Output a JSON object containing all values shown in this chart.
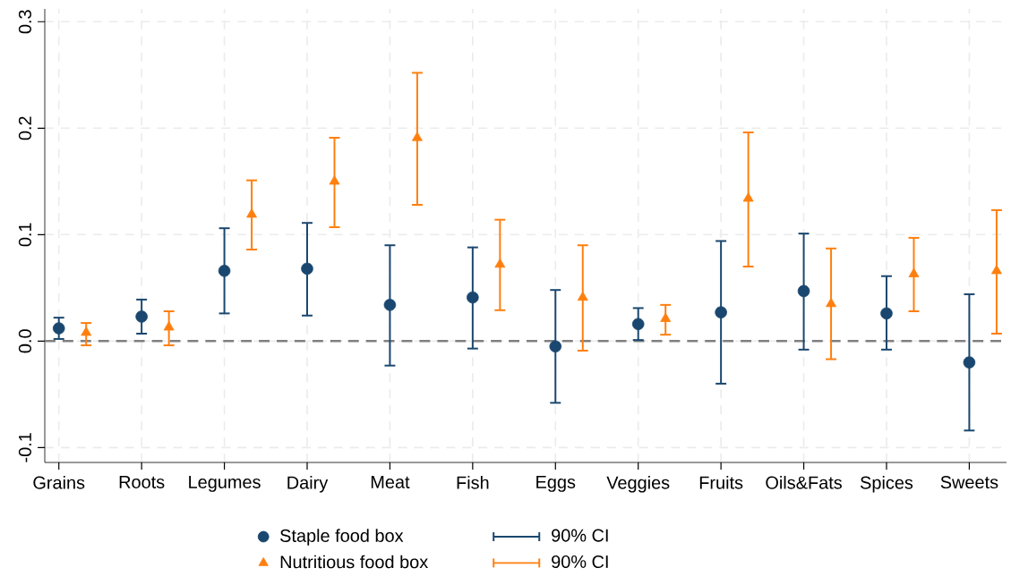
{
  "chart_data": {
    "type": "scatter",
    "categories": [
      "Grains",
      "Roots",
      "Legumes",
      "Dairy",
      "Meat",
      "Fish",
      "Eggs",
      "Veggies",
      "Fruits",
      "Oils&Fats",
      "Spices",
      "Sweets"
    ],
    "series": [
      {
        "name": "Staple food box",
        "color": "#1a476f",
        "marker": "circle",
        "values": [
          0.012,
          0.023,
          0.066,
          0.068,
          0.034,
          0.041,
          -0.005,
          0.016,
          0.027,
          0.047,
          0.026,
          -0.02
        ],
        "errors": [
          [
            0.002,
            0.022
          ],
          [
            0.007,
            0.039
          ],
          [
            0.026,
            0.106
          ],
          [
            0.024,
            0.111
          ],
          [
            -0.023,
            0.09
          ],
          [
            -0.007,
            0.088
          ],
          [
            -0.058,
            0.048
          ],
          [
            0.001,
            0.031
          ],
          [
            -0.04,
            0.094
          ],
          [
            -0.008,
            0.101
          ],
          [
            -0.008,
            0.061
          ],
          [
            -0.084,
            0.044
          ]
        ]
      },
      {
        "name": "Nutritious food box",
        "color": "#ff7f0e",
        "marker": "triangle",
        "values": [
          0.008,
          0.013,
          0.119,
          0.15,
          0.191,
          0.072,
          0.041,
          0.021,
          0.134,
          0.035,
          0.063,
          0.066
        ],
        "errors": [
          [
            -0.004,
            0.017
          ],
          [
            -0.004,
            0.028
          ],
          [
            0.086,
            0.151
          ],
          [
            0.107,
            0.191
          ],
          [
            0.128,
            0.252
          ],
          [
            0.029,
            0.114
          ],
          [
            -0.009,
            0.09
          ],
          [
            0.006,
            0.034
          ],
          [
            0.07,
            0.196
          ],
          [
            -0.017,
            0.087
          ],
          [
            0.028,
            0.097
          ],
          [
            0.007,
            0.123
          ]
        ]
      }
    ],
    "annotations": [
      "90% CI",
      "90% CI"
    ],
    "ylim": [
      -0.114,
      0.312
    ],
    "yticks": [
      -0.1,
      {
        "value": 0,
        "label": "0.0"
      },
      0.1,
      0.2,
      0.3
    ],
    "ref_lines": [
      {
        "axis": "y",
        "value": 0,
        "color": "#808080",
        "line_style": "dashed"
      }
    ],
    "grid": true,
    "legend": "bottom"
  }
}
